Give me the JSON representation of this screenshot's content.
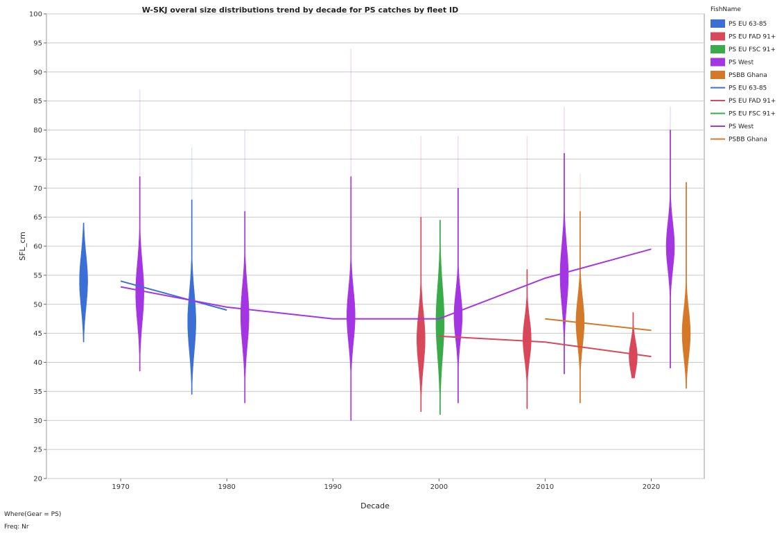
{
  "chart_data": {
    "type": "violin",
    "title": "W-SKJ overal size distributions trend by decade for PS catches by fleet ID",
    "xlabel": "Decade",
    "ylabel": "SFL_cm",
    "xlim": [
      1963,
      2025
    ],
    "ylim": [
      20,
      100
    ],
    "x_ticks": [
      1970,
      1980,
      1990,
      2000,
      2010,
      2020
    ],
    "y_ticks": [
      20,
      25,
      30,
      35,
      40,
      45,
      50,
      55,
      60,
      65,
      70,
      75,
      80,
      85,
      90,
      95,
      100
    ],
    "grid": true,
    "legend": {
      "title": "FishName",
      "placement": "right",
      "entries": [
        {
          "label": "PS EU 63-85",
          "kind": "swatch",
          "color": "#3b6fd6"
        },
        {
          "label": "PS EU FAD 91+",
          "kind": "swatch",
          "color": "#d8475a"
        },
        {
          "label": "PS EU FSC 91+",
          "kind": "swatch",
          "color": "#3aab49"
        },
        {
          "label": "PS West",
          "kind": "swatch",
          "color": "#a335e3"
        },
        {
          "label": "PSBB Ghana",
          "kind": "swatch",
          "color": "#d4782a"
        },
        {
          "label": "PS EU 63-85",
          "kind": "line",
          "color": "#3b6fd6"
        },
        {
          "label": "PS EU FAD 91+",
          "kind": "line",
          "color": "#d8475a"
        },
        {
          "label": "PS EU FSC 91+",
          "kind": "line",
          "color": "#3aab49"
        },
        {
          "label": "PS West",
          "kind": "line",
          "color": "#a335e3"
        },
        {
          "label": "PSBB Ghana",
          "kind": "line",
          "color": "#d4782a"
        }
      ]
    },
    "violins": [
      {
        "series": "PS EU 63-85",
        "decade": 1966.5,
        "color": "#3b6fd6",
        "min": 43.5,
        "max": 64,
        "center": 54,
        "spread": 4.5,
        "faint_max": 64
      },
      {
        "series": "PS West",
        "decade": 1971.8,
        "color": "#a335e3",
        "min": 38.5,
        "max": 72,
        "center": 52,
        "spread": 5,
        "faint_max": 87
      },
      {
        "series": "PS EU 63-85",
        "decade": 1976.7,
        "color": "#3b6fd6",
        "min": 34.5,
        "max": 68,
        "center": 47,
        "spread": 5,
        "faint_max": 77
      },
      {
        "series": "PS West",
        "decade": 1981.7,
        "color": "#a335e3",
        "min": 33,
        "max": 66,
        "center": 48,
        "spread": 5,
        "faint_max": 80
      },
      {
        "series": "PS West",
        "decade": 1991.7,
        "color": "#a335e3",
        "min": 30,
        "max": 72,
        "center": 48,
        "spread": 4.5,
        "faint_max": 94
      },
      {
        "series": "PS EU FAD 91+",
        "decade": 1998.3,
        "color": "#d8475a",
        "min": 31.5,
        "max": 65,
        "center": 44,
        "spread": 4.5,
        "faint_max": 79
      },
      {
        "series": "PS EU FSC 91+",
        "decade": 2000.1,
        "color": "#3aab49",
        "min": 31,
        "max": 64.5,
        "center": 47,
        "spread": 6,
        "faint_max": 64.5
      },
      {
        "series": "PS West",
        "decade": 2001.8,
        "color": "#a335e3",
        "min": 33,
        "max": 70,
        "center": 48,
        "spread": 4,
        "faint_max": 79
      },
      {
        "series": "PS EU FAD 91+",
        "decade": 2008.3,
        "color": "#d8475a",
        "min": 32,
        "max": 56,
        "center": 44,
        "spread": 3.5,
        "faint_max": 79
      },
      {
        "series": "PS West",
        "decade": 2011.8,
        "color": "#a335e3",
        "min": 38,
        "max": 76,
        "center": 55,
        "spread": 5,
        "faint_max": 84
      },
      {
        "series": "PS West",
        "decade": 2021.8,
        "color": "#a335e3",
        "min": 39,
        "max": 80,
        "center": 60,
        "spread": 4,
        "faint_max": 84
      },
      {
        "series": "PSBB Ghana",
        "decade": 2013.3,
        "color": "#d4782a",
        "min": 33,
        "max": 66,
        "center": 47,
        "spread": 4,
        "faint_max": 72.5
      },
      {
        "series": "PSBB Ghana",
        "decade": 2023.3,
        "color": "#d4782a",
        "min": 35.5,
        "max": 71,
        "center": 45,
        "spread": 4,
        "faint_max": 71
      },
      {
        "series": "PS EU FAD 91+",
        "decade": 2018.3,
        "color": "#d8475a",
        "min": 37.3,
        "max": 48.6,
        "center": 41,
        "spread": 2.5,
        "faint_max": 48.6
      }
    ],
    "series": [
      {
        "name": "PS EU 63-85",
        "color": "#3b6fd6",
        "x": [
          1970,
          1980
        ],
        "y": [
          54,
          49
        ]
      },
      {
        "name": "PS West",
        "color": "#a335e3",
        "x": [
          1970,
          1980,
          1990,
          2000,
          2010,
          2020
        ],
        "y": [
          53,
          49.5,
          47.5,
          47.5,
          54.5,
          59.5
        ]
      },
      {
        "name": "PS EU FAD 91+",
        "color": "#d8475a",
        "x": [
          2000,
          2010,
          2020
        ],
        "y": [
          44.5,
          43.5,
          41
        ]
      },
      {
        "name": "PSBB Ghana",
        "color": "#d4782a",
        "x": [
          2010,
          2020
        ],
        "y": [
          47.5,
          45.5
        ]
      }
    ]
  },
  "footer": {
    "where": "Where(Gear = PS)",
    "freq": "Freq: Nr"
  }
}
